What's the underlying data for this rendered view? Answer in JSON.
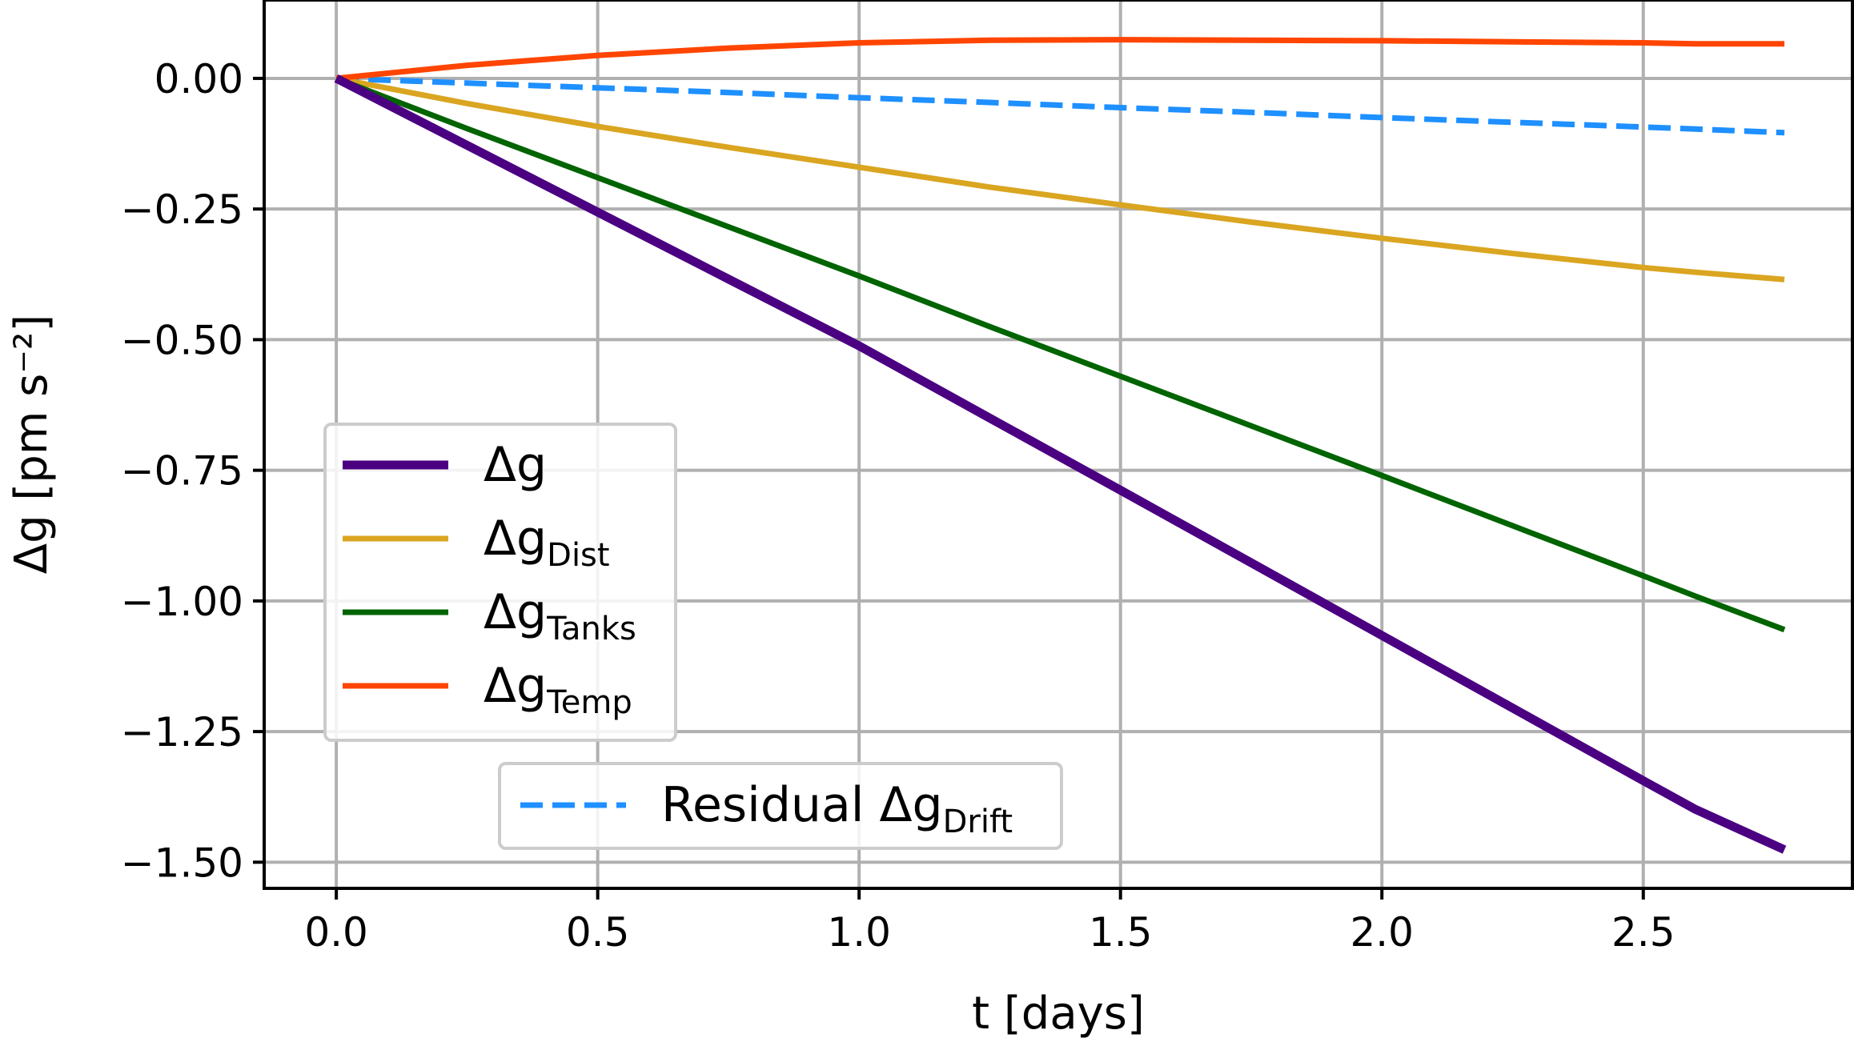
{
  "chart_data": {
    "type": "line",
    "xlabel": "t [days]",
    "ylabel": "Δg [pm s⁻²]",
    "xlim": [
      -0.138,
      2.9
    ],
    "ylim": [
      -1.55,
      0.15
    ],
    "x_ticks": [
      0.0,
      0.5,
      1.0,
      1.5,
      2.0,
      2.5
    ],
    "x_tick_labels": [
      "0.0",
      "0.5",
      "1.0",
      "1.5",
      "2.0",
      "2.5"
    ],
    "y_ticks": [
      0.0,
      -0.25,
      -0.5,
      -0.75,
      -1.0,
      -1.25,
      -1.5
    ],
    "y_tick_labels": [
      "0.00",
      "−0.25",
      "−0.50",
      "−0.75",
      "−1.00",
      "−1.25",
      "−1.50"
    ],
    "grid": true,
    "x": [
      0.0,
      0.25,
      0.5,
      0.75,
      1.0,
      1.25,
      1.5,
      1.75,
      2.0,
      2.25,
      2.5,
      2.6,
      2.77
    ],
    "series": [
      {
        "name": "Δg",
        "legend_main": "Δg",
        "legend_sub": "",
        "color": "#4b0082",
        "style": "solid",
        "values": [
          0.0,
          -0.128,
          -0.256,
          -0.384,
          -0.512,
          -0.65,
          -0.788,
          -0.927,
          -1.066,
          -1.205,
          -1.344,
          -1.399,
          -1.476
        ]
      },
      {
        "name": "Δg_Dist",
        "legend_main": "Δg",
        "legend_sub": "Dist",
        "color": "#daa520",
        "style": "solid",
        "values": [
          0.0,
          -0.048,
          -0.092,
          -0.132,
          -0.17,
          -0.208,
          -0.242,
          -0.275,
          -0.306,
          -0.335,
          -0.362,
          -0.371,
          -0.385
        ]
      },
      {
        "name": "Δg_Tanks",
        "legend_main": "Δg",
        "legend_sub": "Tanks",
        "color": "#006400",
        "style": "solid",
        "values": [
          0.0,
          -0.096,
          -0.19,
          -0.284,
          -0.378,
          -0.475,
          -0.57,
          -0.665,
          -0.76,
          -0.856,
          -0.952,
          -0.991,
          -1.055
        ]
      },
      {
        "name": "Δg_Temp",
        "legend_main": "Δg",
        "legend_sub": "Temp",
        "color": "#ff4500",
        "style": "solid",
        "values": [
          0.0,
          0.025,
          0.044,
          0.058,
          0.068,
          0.073,
          0.074,
          0.073,
          0.072,
          0.07,
          0.068,
          0.066,
          0.066
        ]
      },
      {
        "name": "Residual Δg_Drift",
        "legend_main": "Residual Δg",
        "legend_sub": "Drift",
        "color": "#1e90ff",
        "style": "dashed",
        "values": [
          0.0,
          -0.009,
          -0.018,
          -0.027,
          -0.037,
          -0.046,
          -0.056,
          -0.065,
          -0.075,
          -0.084,
          -0.093,
          -0.097,
          -0.104
        ]
      }
    ],
    "legend_main": {
      "location": "center-left",
      "series": [
        0,
        1,
        2,
        3
      ]
    },
    "legend_secondary": {
      "location": "bottom-center",
      "series": [
        4
      ]
    }
  }
}
